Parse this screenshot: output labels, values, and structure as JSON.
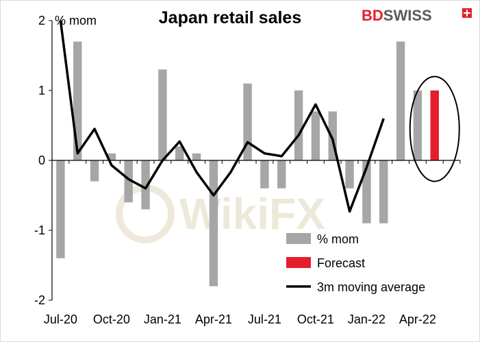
{
  "brand": {
    "part1": "BD",
    "part2": "SWISS",
    "color_red": "#e41e2b",
    "color_dark": "#5a5a5a"
  },
  "watermark": {
    "text": "WikiFX"
  },
  "chart_data": {
    "type": "bar",
    "title": "Japan retail sales",
    "y_unit_label": "% mom",
    "ylim": [
      -2,
      2
    ],
    "yticks": [
      -2,
      -1,
      0,
      1,
      2
    ],
    "categories": [
      "Jul-20",
      "Aug-20",
      "Sep-20",
      "Oct-20",
      "Nov-20",
      "Dec-20",
      "Jan-21",
      "Feb-21",
      "Mar-21",
      "Apr-21",
      "May-21",
      "Jun-21",
      "Jul-21",
      "Aug-21",
      "Sep-21",
      "Oct-21",
      "Nov-21",
      "Dec-21",
      "Jan-22",
      "Feb-22",
      "Mar-22",
      "Apr-22",
      "May-22",
      "Jun-22"
    ],
    "x_tick_labels": [
      {
        "index": 0,
        "label": "Jul-20"
      },
      {
        "index": 3,
        "label": "Oct-20"
      },
      {
        "index": 6,
        "label": "Jan-21"
      },
      {
        "index": 9,
        "label": "Apr-21"
      },
      {
        "index": 12,
        "label": "Jul-21"
      },
      {
        "index": 15,
        "label": "Oct-21"
      },
      {
        "index": 18,
        "label": "Jan-22"
      },
      {
        "index": 21,
        "label": "Apr-22"
      }
    ],
    "series": [
      {
        "name": "% mom",
        "kind": "bar",
        "color": "#a6a6a6",
        "values": [
          -1.4,
          1.7,
          -0.3,
          0.1,
          -0.6,
          -0.7,
          1.3,
          0.2,
          0.1,
          -1.8,
          0.0,
          1.1,
          -0.4,
          -0.4,
          1.0,
          0.7,
          0.7,
          -0.4,
          -0.9,
          -0.9,
          1.7,
          1.0,
          null,
          null
        ]
      },
      {
        "name": "Forecast",
        "kind": "bar",
        "color": "#e41e2b",
        "values": [
          null,
          null,
          null,
          null,
          null,
          null,
          null,
          null,
          null,
          null,
          null,
          null,
          null,
          null,
          null,
          null,
          null,
          null,
          null,
          null,
          null,
          null,
          1.0,
          null
        ]
      },
      {
        "name": "3m moving average",
        "kind": "line",
        "color": "#000000",
        "values": [
          2.0,
          0.1,
          0.45,
          -0.07,
          -0.27,
          -0.4,
          0.0,
          0.27,
          -0.17,
          -0.5,
          -0.17,
          0.26,
          0.1,
          0.06,
          0.36,
          0.8,
          0.3,
          -0.73,
          -0.1,
          0.6,
          null,
          null,
          null,
          null
        ]
      }
    ],
    "legend_position": "bottom-right",
    "annotation": "ellipse around forecast bar",
    "grid": false
  }
}
